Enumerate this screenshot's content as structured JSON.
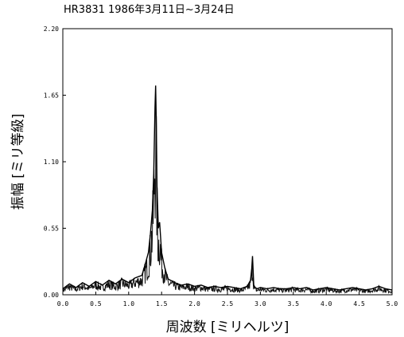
{
  "chart_data": {
    "type": "line",
    "title": "HR3831 1986年3月11日~3月24日",
    "xlabel": "周波数 [ミリヘルツ]",
    "ylabel": "振幅 [ミリ等級]",
    "xlim": [
      0.0,
      5.0
    ],
    "ylim": [
      0.0,
      2.2
    ],
    "x_ticks": [
      "0.0",
      "0.5",
      "1.0",
      "1.5",
      "2.0",
      "2.5",
      "3.0",
      "3.5",
      "4.0",
      "4.5",
      "5.0"
    ],
    "y_ticks": [
      "0.00",
      "0.55",
      "1.10",
      "1.65",
      "2.20"
    ],
    "grid": false,
    "series": [
      {
        "x": [
          0.0,
          0.1,
          0.2,
          0.3,
          0.4,
          0.5,
          0.6,
          0.7,
          0.8,
          0.9,
          1.0,
          1.1,
          1.2,
          1.25,
          1.3,
          1.33,
          1.36,
          1.38,
          1.4,
          1.41,
          1.42,
          1.43,
          1.45,
          1.47,
          1.5,
          1.55,
          1.6,
          1.7,
          1.8,
          1.9,
          2.0,
          2.1,
          2.2,
          2.3,
          2.4,
          2.5,
          2.6,
          2.7,
          2.8,
          2.85,
          2.87,
          2.88,
          2.89,
          2.9,
          2.92,
          2.95,
          3.0,
          3.1,
          3.2,
          3.3,
          3.4,
          3.5,
          3.6,
          3.7,
          3.8,
          3.9,
          4.0,
          4.1,
          4.2,
          4.3,
          4.4,
          4.5,
          4.6,
          4.7,
          4.8,
          4.9,
          5.0
        ],
        "y": [
          0.05,
          0.09,
          0.06,
          0.1,
          0.07,
          0.11,
          0.08,
          0.12,
          0.09,
          0.13,
          0.1,
          0.14,
          0.16,
          0.25,
          0.35,
          0.5,
          0.7,
          1.0,
          1.55,
          1.73,
          1.4,
          0.9,
          0.55,
          0.6,
          0.35,
          0.22,
          0.13,
          0.1,
          0.08,
          0.09,
          0.07,
          0.08,
          0.06,
          0.07,
          0.06,
          0.07,
          0.06,
          0.05,
          0.07,
          0.12,
          0.22,
          0.32,
          0.2,
          0.08,
          0.06,
          0.05,
          0.06,
          0.05,
          0.06,
          0.05,
          0.05,
          0.06,
          0.05,
          0.06,
          0.04,
          0.05,
          0.06,
          0.05,
          0.04,
          0.05,
          0.06,
          0.05,
          0.04,
          0.05,
          0.07,
          0.05,
          0.04
        ]
      }
    ]
  }
}
